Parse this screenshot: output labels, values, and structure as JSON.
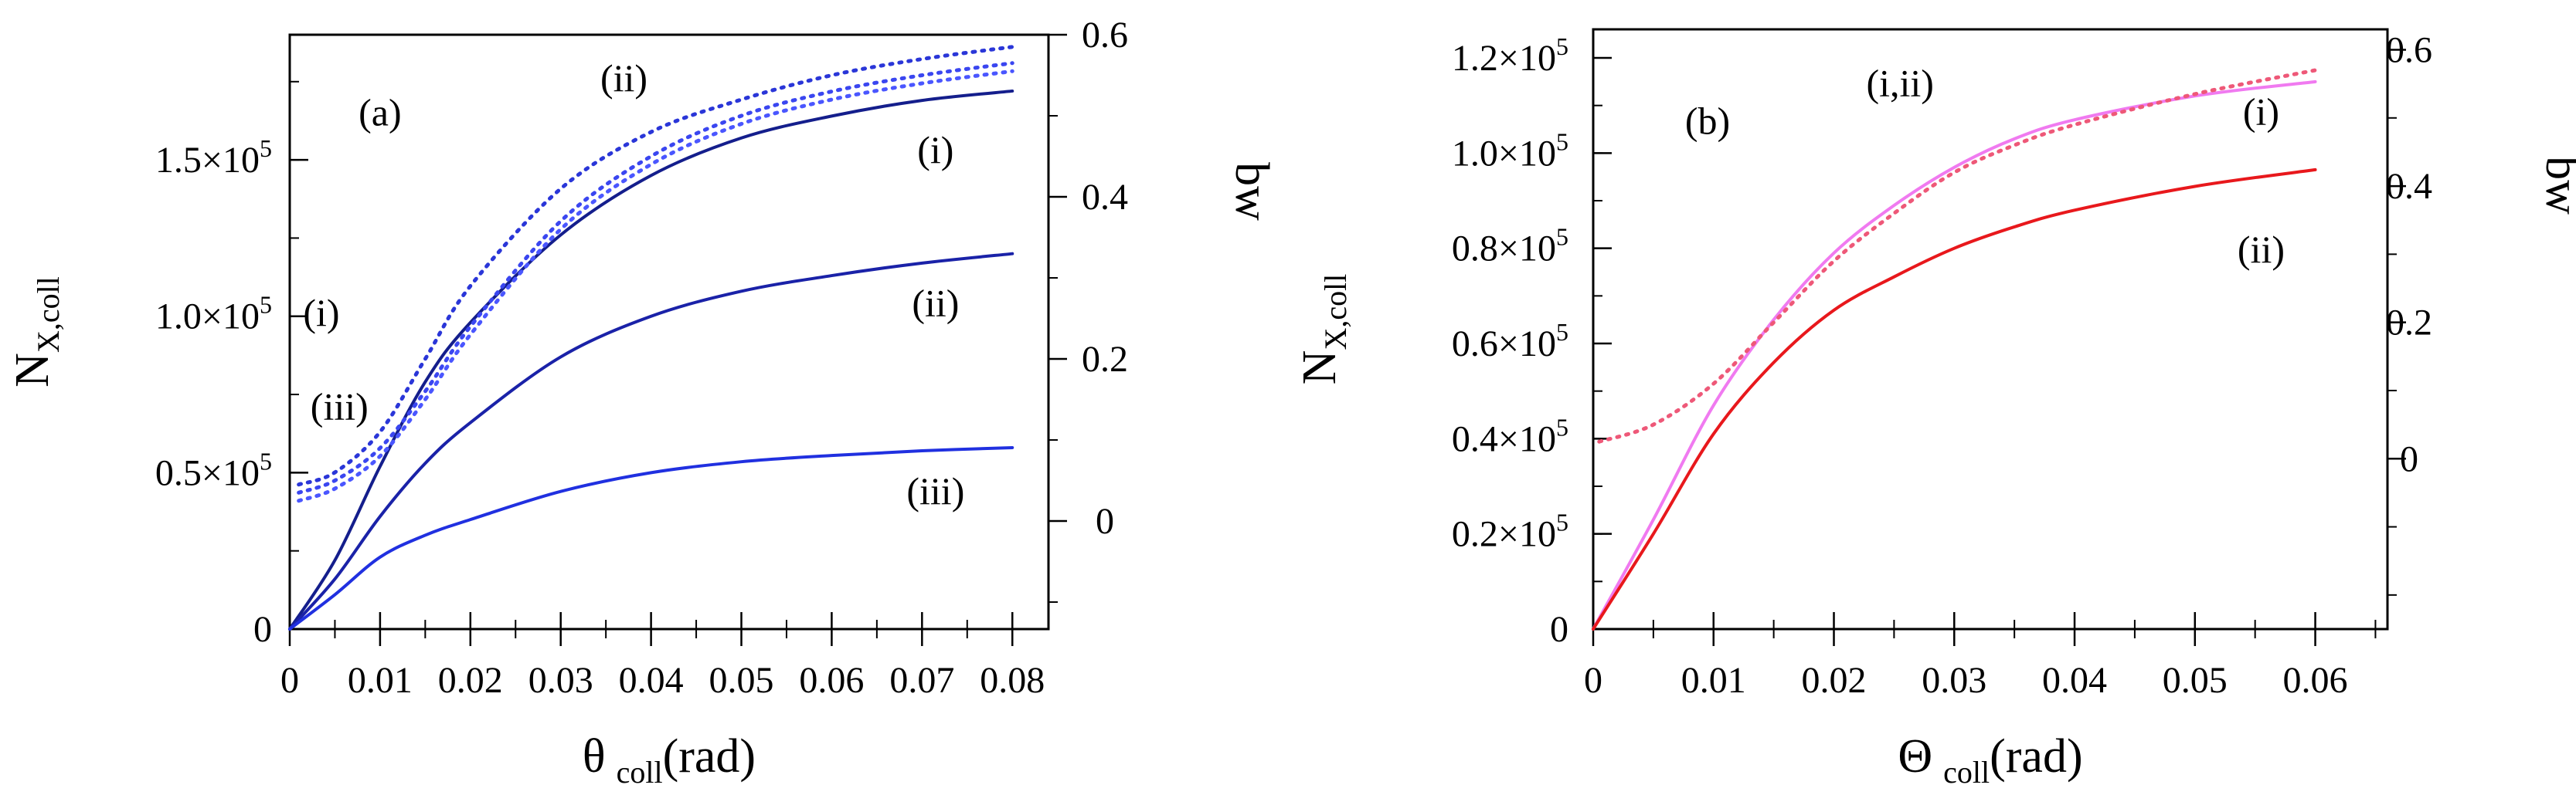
{
  "chart_data": [
    {
      "type": "line",
      "panel_label": "(a)",
      "xlabel_symbol": "θ",
      "xlabel_subscript": "coll",
      "xlabel_unit": "(rad)",
      "ylabel_main": "N",
      "ylabel_subscript": "X,coll",
      "y2label": "bw",
      "xlim": [
        0,
        0.084
      ],
      "ylim": [
        0,
        190000
      ],
      "y2lim": [
        -0.1333,
        0.6
      ],
      "x_ticks": [
        "0",
        "0.01",
        "0.02",
        "0.03",
        "0.04",
        "0.05",
        "0.06",
        "0.07",
        "0.08"
      ],
      "y_ticks": [
        {
          "value": 0,
          "mantissa": "0",
          "exp": ""
        },
        {
          "value": 50000,
          "mantissa": "0.5×10",
          "exp": "5"
        },
        {
          "value": 100000,
          "mantissa": "1.0×10",
          "exp": "5"
        },
        {
          "value": 150000,
          "mantissa": "1.5×10",
          "exp": "5"
        }
      ],
      "y2_ticks": [
        "0",
        "0.2",
        "0.4",
        "0.6"
      ],
      "series": [
        {
          "name": "(i)",
          "axis": "left",
          "style": "solid",
          "color": "#141e8c",
          "x": [
            0,
            0.005,
            0.01,
            0.015,
            0.02,
            0.03,
            0.04,
            0.05,
            0.06,
            0.07,
            0.08
          ],
          "values": [
            0,
            22000,
            52000,
            79000,
            98000,
            126000,
            145000,
            157000,
            164000,
            169000,
            172000
          ]
        },
        {
          "name": "(ii)",
          "axis": "left",
          "style": "solid",
          "color": "#1a22a8",
          "x": [
            0,
            0.005,
            0.01,
            0.015,
            0.02,
            0.03,
            0.04,
            0.05,
            0.06,
            0.07,
            0.08
          ],
          "values": [
            0,
            16000,
            36000,
            53000,
            66000,
            87000,
            100000,
            108000,
            113000,
            117000,
            120000
          ]
        },
        {
          "name": "(iii)",
          "axis": "left",
          "style": "solid",
          "color": "#2030e0",
          "x": [
            0,
            0.005,
            0.01,
            0.015,
            0.02,
            0.03,
            0.04,
            0.05,
            0.06,
            0.07,
            0.08
          ],
          "values": [
            0,
            11000,
            23000,
            30000,
            35000,
            44000,
            50000,
            53500,
            55500,
            57000,
            58000
          ]
        },
        {
          "name": "(i) bw",
          "axis": "right",
          "style": "dotted",
          "color": "#2a36d8",
          "x": [
            0.001,
            0.005,
            0.01,
            0.015,
            0.02,
            0.03,
            0.04,
            0.05,
            0.06,
            0.07,
            0.08
          ],
          "values": [
            0.045,
            0.06,
            0.11,
            0.2,
            0.29,
            0.41,
            0.48,
            0.52,
            0.55,
            0.57,
            0.585
          ]
        },
        {
          "name": "(ii) bw",
          "axis": "right",
          "style": "dotted",
          "color": "#3a46f0",
          "x": [
            0.001,
            0.005,
            0.01,
            0.015,
            0.02,
            0.03,
            0.04,
            0.05,
            0.06,
            0.07,
            0.08
          ],
          "values": [
            0.035,
            0.05,
            0.09,
            0.16,
            0.24,
            0.37,
            0.45,
            0.5,
            0.53,
            0.55,
            0.565
          ]
        },
        {
          "name": "(iii) bw",
          "axis": "right",
          "style": "dotted",
          "color": "#4a56ff",
          "x": [
            0.001,
            0.005,
            0.01,
            0.015,
            0.02,
            0.03,
            0.04,
            0.05,
            0.06,
            0.07,
            0.08
          ],
          "values": [
            0.025,
            0.04,
            0.08,
            0.15,
            0.23,
            0.36,
            0.44,
            0.49,
            0.52,
            0.54,
            0.555
          ]
        }
      ],
      "annotations": [
        {
          "text": "(a)",
          "x": 0.01,
          "y": 161000
        },
        {
          "text": "(ii)",
          "x": 0.037,
          "y": 172000
        },
        {
          "text": "(i)",
          "x": 0.0715,
          "y": 149000
        },
        {
          "text": "(ii)",
          "x": 0.0715,
          "y": 100000
        },
        {
          "text": "(iii)",
          "x": 0.0715,
          "y": 40000
        },
        {
          "text": "(i)",
          "x": 0.0035,
          "y": 97000
        },
        {
          "text": "(iii)",
          "x": 0.0055,
          "y": 67000
        }
      ]
    },
    {
      "type": "line",
      "panel_label": "(b)",
      "xlabel_symbol": "Θ",
      "xlabel_subscript": "coll",
      "xlabel_unit": "(rad)",
      "ylabel_main": "N",
      "ylabel_subscript": "X,coll",
      "y2label": "bw",
      "xlim": [
        0,
        0.066
      ],
      "ylim": [
        0,
        126000
      ],
      "y2lim": [
        -0.25,
        0.63
      ],
      "x_ticks": [
        "0",
        "0.01",
        "0.02",
        "0.03",
        "0.04",
        "0.05",
        "0.06"
      ],
      "y_ticks": [
        {
          "value": 0,
          "mantissa": "0",
          "exp": ""
        },
        {
          "value": 20000,
          "mantissa": "0.2×10",
          "exp": "5"
        },
        {
          "value": 40000,
          "mantissa": "0.4×10",
          "exp": "5"
        },
        {
          "value": 60000,
          "mantissa": "0.6×10",
          "exp": "5"
        },
        {
          "value": 80000,
          "mantissa": "0.8×10",
          "exp": "5"
        },
        {
          "value": 100000,
          "mantissa": "1.0×10",
          "exp": "5"
        },
        {
          "value": 120000,
          "mantissa": "1.2×10",
          "exp": "5"
        }
      ],
      "y2_ticks": [
        "0",
        "0.2",
        "0.4",
        "0.6"
      ],
      "series": [
        {
          "name": "(i)",
          "axis": "left",
          "style": "solid",
          "color": "#f07af0",
          "x": [
            0,
            0.005,
            0.01,
            0.015,
            0.02,
            0.025,
            0.03,
            0.035,
            0.04,
            0.05,
            0.06
          ],
          "values": [
            0,
            23000,
            47000,
            65000,
            79000,
            89000,
            97000,
            103000,
            107000,
            112000,
            115000
          ]
        },
        {
          "name": "(ii)",
          "axis": "left",
          "style": "solid",
          "color": "#e8181c",
          "x": [
            0,
            0.005,
            0.01,
            0.015,
            0.02,
            0.025,
            0.03,
            0.035,
            0.04,
            0.05,
            0.06
          ],
          "values": [
            0,
            20000,
            41000,
            56000,
            67000,
            74000,
            80000,
            84500,
            88000,
            93000,
            96500
          ]
        },
        {
          "name": "(i,ii) bw",
          "axis": "right",
          "style": "dotted",
          "color": "#ee5878",
          "x": [
            0.0005,
            0.005,
            0.01,
            0.015,
            0.02,
            0.025,
            0.03,
            0.035,
            0.04,
            0.05,
            0.06
          ],
          "values": [
            0.025,
            0.05,
            0.11,
            0.2,
            0.29,
            0.36,
            0.42,
            0.46,
            0.49,
            0.535,
            0.57
          ]
        }
      ],
      "annotations": [
        {
          "text": "(b)",
          "x": 0.0095,
          "y": 104000
        },
        {
          "text": "(i,ii)",
          "x": 0.0255,
          "y": 112000
        },
        {
          "text": "(i)",
          "x": 0.0555,
          "y": 106000
        },
        {
          "text": "(ii)",
          "x": 0.0555,
          "y": 77000
        }
      ]
    }
  ]
}
